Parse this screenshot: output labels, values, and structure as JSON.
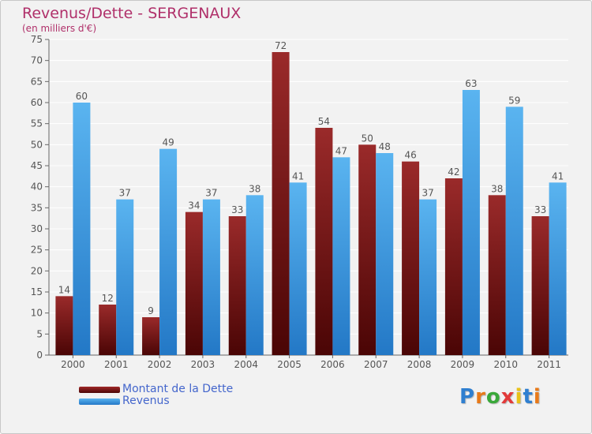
{
  "header": {
    "title": "Revenus/Dette - SERGENAUX",
    "subtitle": "(en milliers d'€)"
  },
  "chart_data": {
    "type": "bar",
    "categories": [
      "2000",
      "2001",
      "2002",
      "2003",
      "2004",
      "2005",
      "2006",
      "2007",
      "2008",
      "2009",
      "2010",
      "2011"
    ],
    "series": [
      {
        "name": "Montant de la Dette",
        "color": "#7a1515",
        "values": [
          14,
          12,
          9,
          34,
          33,
          72,
          54,
          50,
          46,
          42,
          38,
          33
        ]
      },
      {
        "name": "Revenus",
        "color": "#3d9ae0",
        "values": [
          60,
          37,
          49,
          37,
          38,
          41,
          47,
          48,
          37,
          63,
          59,
          41
        ]
      }
    ],
    "ylim": [
      0,
      75
    ],
    "yticks": [
      0,
      5,
      10,
      15,
      20,
      25,
      30,
      35,
      40,
      45,
      50,
      55,
      60,
      65,
      70,
      75
    ],
    "grid": true,
    "legend_position": "bottom-left"
  },
  "legend": {
    "items": [
      {
        "label": "Montant de la Dette",
        "color": "#7a1515"
      },
      {
        "label": "Revenus",
        "color": "#3d9ae0"
      }
    ]
  },
  "logo": {
    "letters": [
      "P",
      "r",
      "o",
      "x",
      "i",
      "t",
      "i"
    ],
    "colors": [
      "#2f7fd0",
      "#e87a1a",
      "#3aa83a",
      "#e23a3a",
      "#e8c21a",
      "#2f7fd0",
      "#e87a1a"
    ]
  }
}
